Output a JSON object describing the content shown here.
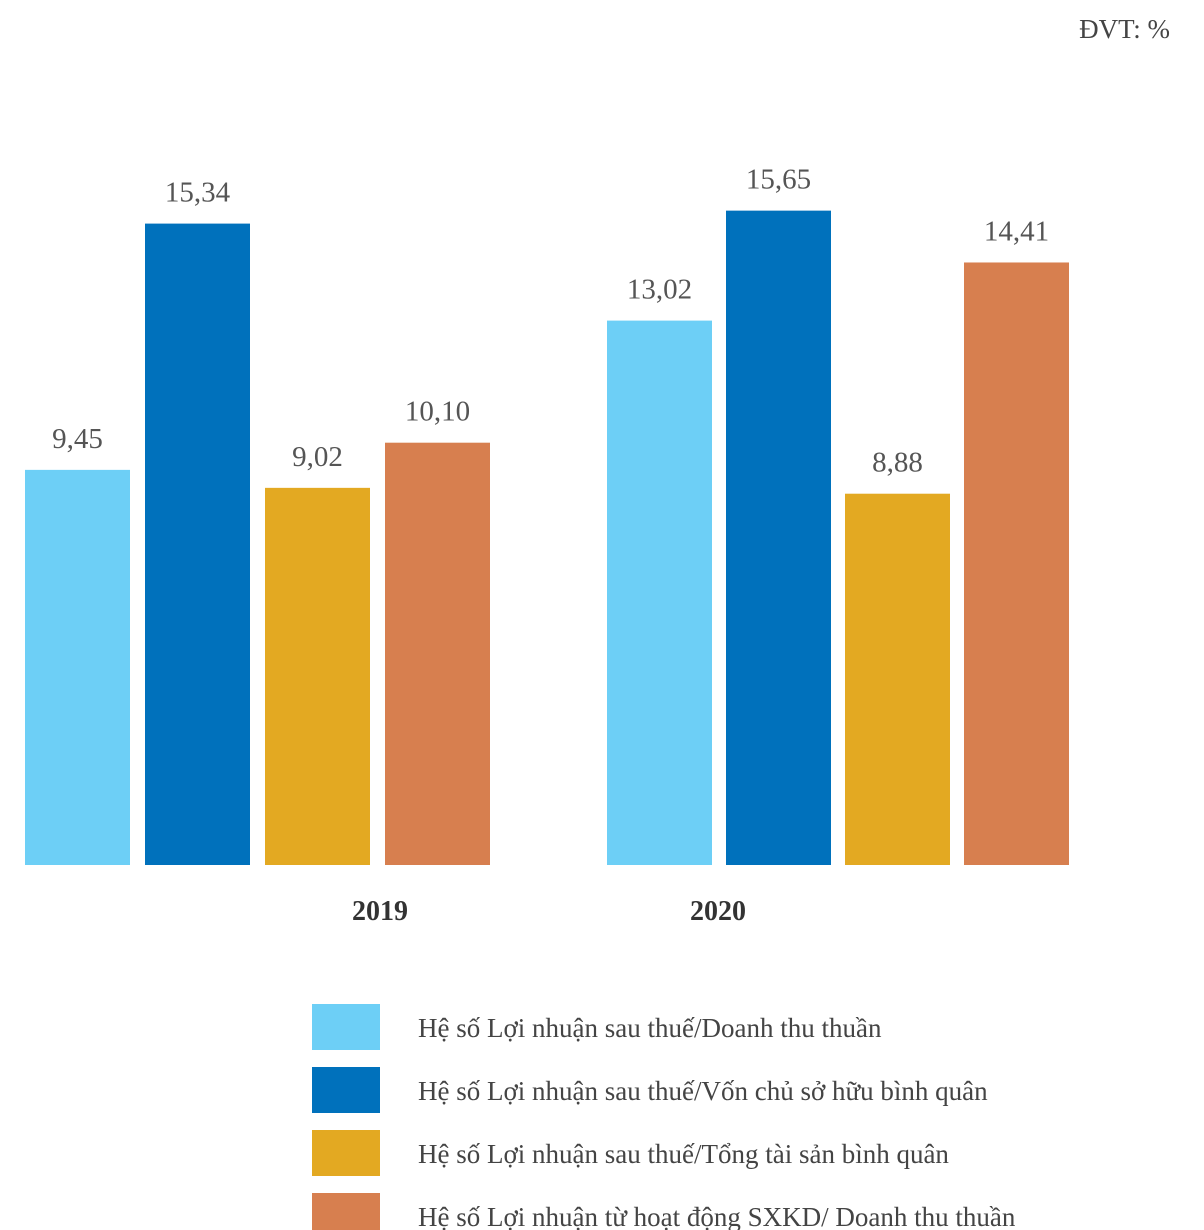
{
  "chart_data": {
    "type": "bar",
    "subtitle": "ĐVT: %",
    "categories": [
      "2019",
      "2020"
    ],
    "series": [
      {
        "name": "Hệ số Lợi nhuận sau thuế/Doanh thu thuần",
        "color": "#6dcff6",
        "values": [
          9.45,
          13.02
        ],
        "value_labels": [
          "9,45",
          "13,02"
        ]
      },
      {
        "name": "Hệ số Lợi nhuận sau thuế/Vốn chủ sở hữu bình quân",
        "color": "#0071bc",
        "values": [
          15.34,
          15.65
        ],
        "value_labels": [
          "15,34",
          "15,65"
        ]
      },
      {
        "name": "Hệ số Lợi nhuận sau thuế/Tổng tài sản bình quân",
        "color": "#e3a922",
        "values": [
          9.02,
          8.88
        ],
        "value_labels": [
          "9,02",
          "8,88"
        ]
      },
      {
        "name": "Hệ số Lợi nhuận từ hoạt động SXKD/ Doanh thu thuần",
        "color": "#d77f4f",
        "values": [
          10.1,
          14.41
        ],
        "value_labels": [
          "10,10",
          "14,41"
        ]
      }
    ],
    "ylim": [
      0,
      16
    ]
  }
}
